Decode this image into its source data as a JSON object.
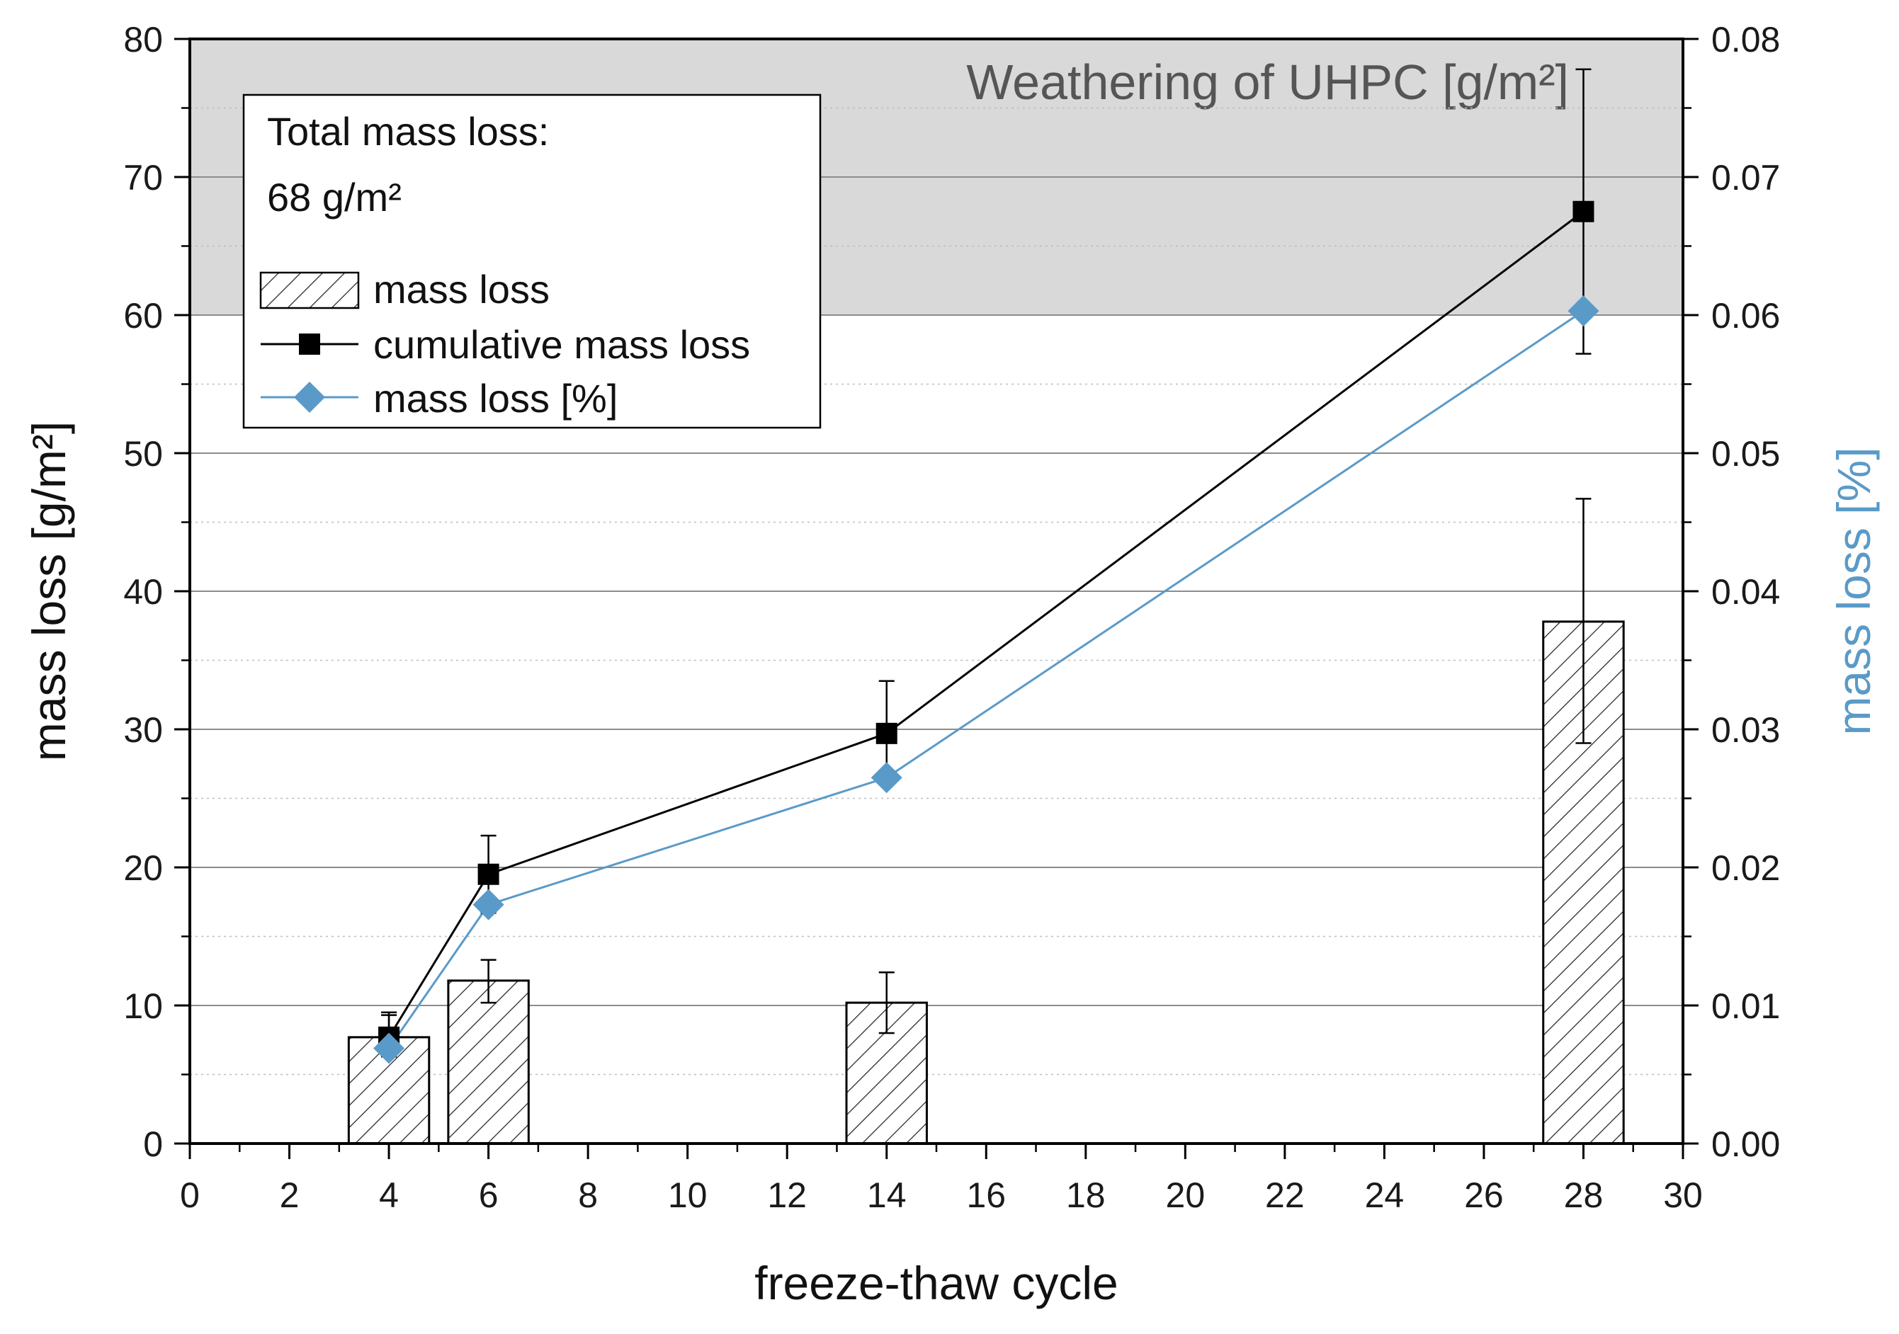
{
  "chart_data": {
    "type": "bar+line",
    "xlabel": "freeze-thaw cycle",
    "ylabel": "mass loss [g/m²]",
    "ylabel_right": "mass loss [%]",
    "xlim": [
      0,
      30
    ],
    "ylim": [
      0,
      80
    ],
    "ylim_right": [
      0,
      0.08
    ],
    "x_ticks": [
      0,
      2,
      4,
      6,
      8,
      10,
      12,
      14,
      16,
      18,
      20,
      22,
      24,
      26,
      28,
      30
    ],
    "y_ticks": [
      0,
      10,
      20,
      30,
      40,
      50,
      60,
      70,
      80
    ],
    "y_right_ticks": [
      "0.00",
      "0.01",
      "0.02",
      "0.03",
      "0.04",
      "0.05",
      "0.06",
      "0.07",
      "0.08"
    ],
    "grid": true,
    "shaded_band": {
      "from": 60,
      "to": 80,
      "label": "Weathering of UHPC [g/m²]"
    },
    "annotation": {
      "line1": "Total mass loss:",
      "line2": "68 g/m²"
    },
    "colors": {
      "percent_series": "#5a9ac8",
      "cumulative_series": "#000000",
      "band": "#d9d9d9"
    },
    "series": [
      {
        "name": "mass loss",
        "kind": "bar",
        "axis": "left",
        "x": [
          4,
          6,
          14,
          28
        ],
        "values": [
          7.7,
          11.8,
          10.2,
          37.8
        ],
        "error_low": [
          6.3,
          10.2,
          8.0,
          29.0
        ],
        "error_high": [
          9.3,
          13.3,
          12.4,
          46.7
        ]
      },
      {
        "name": "cumulative mass loss",
        "kind": "line",
        "marker": "square",
        "axis": "left",
        "x": [
          4,
          6,
          14,
          28
        ],
        "values": [
          7.7,
          19.5,
          29.7,
          67.5
        ],
        "error_low": [
          6.3,
          16.7,
          26.0,
          57.2
        ],
        "error_high": [
          9.5,
          22.3,
          33.5,
          77.8
        ]
      },
      {
        "name": "mass loss [%]",
        "kind": "line",
        "marker": "diamond",
        "axis": "right",
        "x": [
          4,
          6,
          14,
          28
        ],
        "values": [
          0.0069,
          0.0173,
          0.0265,
          0.0603
        ]
      }
    ]
  }
}
